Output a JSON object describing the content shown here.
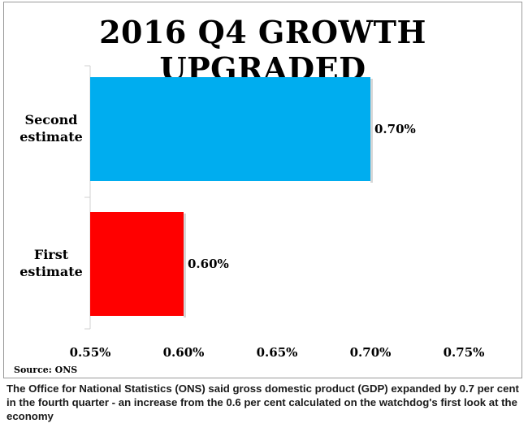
{
  "chart_data": {
    "type": "bar",
    "orientation": "horizontal",
    "title": "2016 Q4 GROWTH UPGRADED",
    "categories": [
      [
        "Second",
        "estimate"
      ],
      [
        "First",
        "estimate"
      ]
    ],
    "values": [
      0.7,
      0.6
    ],
    "data_labels": [
      "0.70%",
      "0.60%"
    ],
    "colors": [
      "#00adef",
      "#ff0000"
    ],
    "xlim": [
      0.55,
      0.75
    ],
    "xticks": [
      0.55,
      0.6,
      0.65,
      0.7,
      0.75
    ],
    "xtick_labels": [
      "0.55%",
      "0.60%",
      "0.65%",
      "0.70%",
      "0.75%"
    ],
    "grid": false,
    "legend": "none"
  },
  "source": "Source: ONS",
  "caption": "The Office for National Statistics (ONS) said gross domestic product (GDP) expanded by 0.7 per cent in the fourth quarter - an increase from the 0.6 per cent calculated on the watchdog's first look at the economy"
}
